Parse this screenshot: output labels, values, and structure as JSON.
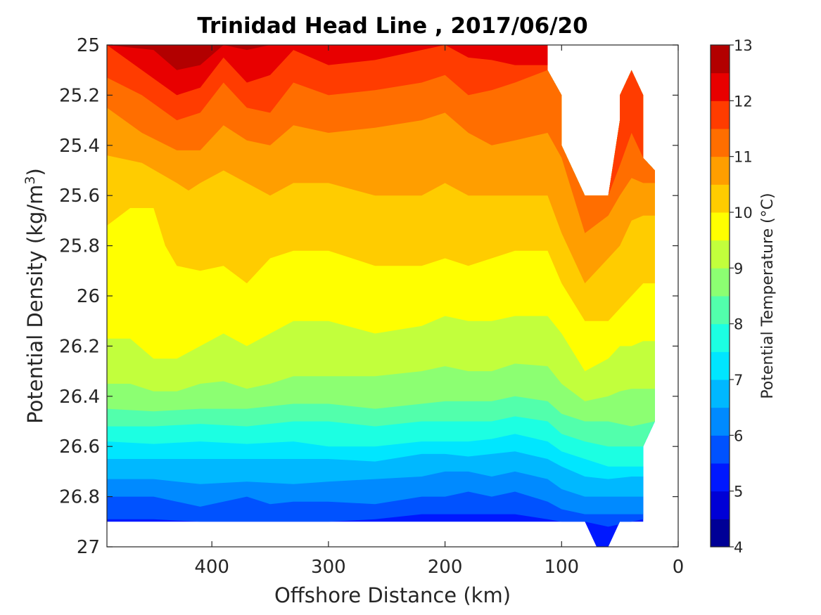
{
  "chart_data": {
    "type": "heatmap",
    "subtype": "filled-contour",
    "title": "Trinidad Head Line , 2017/06/20",
    "xlabel": "Offshore Distance (km)",
    "ylabel": "Potential Density (kg/m",
    "ylabel_superscript": "3",
    "ylabel_suffix": ")",
    "x_reversed": true,
    "y_reversed": true,
    "xlim": [
      0,
      490
    ],
    "ylim": [
      25,
      27
    ],
    "x_ticks": [
      400,
      300,
      200,
      100,
      0
    ],
    "x_tick_labels": [
      "400",
      "300",
      "200",
      "100",
      "0"
    ],
    "y_ticks": [
      25,
      25.2,
      25.4,
      25.6,
      25.8,
      26,
      26.2,
      26.4,
      26.6,
      26.8,
      27
    ],
    "y_tick_labels": [
      "25",
      "25.2",
      "25.4",
      "25.6",
      "25.8",
      "26",
      "26.2",
      "26.4",
      "26.6",
      "26.8",
      "27"
    ],
    "grid": false,
    "colorbar": {
      "label": "Potential Temperature (°C)",
      "min": 4,
      "max": 13,
      "levels": [
        4,
        4.5,
        5,
        5.5,
        6,
        6.5,
        7,
        7.5,
        8,
        8.5,
        9,
        9.5,
        10,
        10.5,
        11,
        11.5,
        12,
        12.5,
        13
      ],
      "colors": [
        "#000096",
        "#0000d6",
        "#0018ff",
        "#0052ff",
        "#008aff",
        "#00b8ff",
        "#00e6ff",
        "#1cffe2",
        "#52ffac",
        "#8cff72",
        "#c2ff3c",
        "#ffff00",
        "#ffcc00",
        "#ff9e00",
        "#ff6e00",
        "#ff3c00",
        "#e80000",
        "#b20000"
      ],
      "tick_values": [
        4,
        5,
        6,
        7,
        8,
        9,
        10,
        11,
        12,
        13
      ],
      "tick_labels": [
        "4",
        "5",
        "6",
        "7",
        "8",
        "9",
        "10",
        "11",
        "12",
        "13"
      ]
    },
    "contour_boundaries": [
      {
        "temp": 12.5,
        "x": [
          490,
          450,
          430,
          410,
          390,
          370,
          350,
          330,
          300,
          260,
          220,
          200,
          180,
          160,
          140,
          112
        ],
        "y": [
          25,
          25.02,
          25.1,
          25.08,
          25.0,
          25.02,
          25.0,
          25.0,
          25.0,
          25.0,
          25.0,
          25.0,
          25.0,
          25.0,
          25.0,
          25.0
        ]
      },
      {
        "temp": 12,
        "x": [
          490,
          460,
          430,
          410,
          390,
          370,
          350,
          330,
          300,
          260,
          220,
          200,
          180,
          160,
          140,
          112
        ],
        "y": [
          25.0,
          25.1,
          25.2,
          25.17,
          25.05,
          25.15,
          25.12,
          25.02,
          25.08,
          25.06,
          25.02,
          25.0,
          25.05,
          25.06,
          25.08,
          25.08
        ]
      },
      {
        "temp": 11.5,
        "x": [
          490,
          460,
          430,
          410,
          390,
          370,
          350,
          330,
          300,
          260,
          220,
          200,
          180,
          160,
          140,
          112,
          100,
          80,
          60,
          50,
          40,
          30,
          20
        ],
        "y": [
          25.13,
          25.2,
          25.3,
          25.27,
          25.15,
          25.25,
          25.27,
          25.15,
          25.2,
          25.18,
          25.15,
          25.12,
          25.2,
          25.18,
          25.15,
          25.1,
          25.2,
          25.6,
          25.6,
          25.48,
          25.35,
          25.45,
          25.5
        ]
      },
      {
        "temp": 11,
        "x": [
          490,
          460,
          430,
          410,
          390,
          370,
          350,
          330,
          300,
          260,
          220,
          200,
          180,
          160,
          140,
          112,
          100,
          80,
          60,
          50,
          40,
          30,
          20
        ],
        "y": [
          25.25,
          25.35,
          25.42,
          25.42,
          25.32,
          25.38,
          25.4,
          25.32,
          25.35,
          25.33,
          25.3,
          25.27,
          25.35,
          25.4,
          25.38,
          25.35,
          25.45,
          25.75,
          25.68,
          25.6,
          25.53,
          25.55,
          25.55
        ]
      },
      {
        "temp": 10.5,
        "x": [
          490,
          460,
          430,
          420,
          410,
          390,
          370,
          350,
          330,
          300,
          260,
          220,
          200,
          180,
          160,
          140,
          112,
          100,
          80,
          60,
          50,
          40,
          30,
          20
        ],
        "y": [
          25.44,
          25.47,
          25.55,
          25.58,
          25.55,
          25.5,
          25.55,
          25.6,
          25.55,
          25.55,
          25.6,
          25.6,
          25.55,
          25.6,
          25.6,
          25.6,
          25.6,
          25.75,
          25.95,
          25.85,
          25.8,
          25.7,
          25.68,
          25.68
        ]
      },
      {
        "temp": 10,
        "x": [
          490,
          470,
          450,
          440,
          430,
          410,
          390,
          370,
          350,
          330,
          300,
          260,
          220,
          200,
          180,
          160,
          140,
          112,
          100,
          80,
          60,
          50,
          40,
          30,
          20
        ],
        "y": [
          25.72,
          25.65,
          25.65,
          25.8,
          25.88,
          25.9,
          25.88,
          25.95,
          25.85,
          25.82,
          25.82,
          25.88,
          25.88,
          25.85,
          25.88,
          25.85,
          25.82,
          25.82,
          25.95,
          26.1,
          26.1,
          26.05,
          26.0,
          25.95,
          25.95
        ]
      },
      {
        "temp": 9.5,
        "x": [
          490,
          470,
          450,
          440,
          430,
          410,
          390,
          370,
          350,
          330,
          300,
          260,
          220,
          200,
          180,
          160,
          140,
          112,
          100,
          80,
          60,
          50,
          40,
          30,
          20
        ],
        "y": [
          26.17,
          26.17,
          26.25,
          26.25,
          26.25,
          26.2,
          26.15,
          26.2,
          26.15,
          26.1,
          26.1,
          26.15,
          26.12,
          26.08,
          26.1,
          26.1,
          26.08,
          26.08,
          26.15,
          26.3,
          26.25,
          26.2,
          26.2,
          26.18,
          26.18
        ]
      },
      {
        "temp": 9,
        "x": [
          490,
          470,
          450,
          430,
          410,
          390,
          370,
          350,
          330,
          300,
          260,
          220,
          200,
          180,
          160,
          140,
          112,
          100,
          80,
          60,
          50,
          40,
          30,
          20
        ],
        "y": [
          26.35,
          26.35,
          26.38,
          26.38,
          26.35,
          26.34,
          26.37,
          26.35,
          26.32,
          26.32,
          26.32,
          26.3,
          26.28,
          26.3,
          26.3,
          26.27,
          26.28,
          26.35,
          26.42,
          26.4,
          26.38,
          26.37,
          26.37,
          26.37
        ]
      },
      {
        "temp": 8.5,
        "x": [
          490,
          450,
          410,
          370,
          330,
          300,
          260,
          220,
          200,
          180,
          160,
          140,
          112,
          100,
          80,
          60,
          40,
          20
        ],
        "y": [
          26.45,
          26.46,
          26.45,
          26.45,
          26.43,
          26.43,
          26.45,
          26.43,
          26.42,
          26.42,
          26.42,
          26.4,
          26.42,
          26.47,
          26.5,
          26.5,
          26.52,
          26.5
        ]
      },
      {
        "temp": 8,
        "x": [
          490,
          450,
          410,
          370,
          330,
          300,
          260,
          220,
          200,
          180,
          160,
          140,
          112,
          100,
          80,
          60,
          40,
          20
        ],
        "y": [
          26.52,
          26.52,
          26.51,
          26.52,
          26.5,
          26.5,
          26.52,
          26.5,
          26.5,
          26.5,
          26.5,
          26.48,
          26.5,
          26.55,
          26.58,
          26.6,
          26.6,
          26.6
        ]
      },
      {
        "temp": 7.5,
        "x": [
          490,
          450,
          410,
          370,
          330,
          300,
          260,
          220,
          200,
          180,
          160,
          140,
          112,
          100,
          80,
          60,
          40,
          30
        ],
        "y": [
          26.58,
          26.59,
          26.58,
          26.59,
          26.58,
          26.6,
          26.6,
          26.58,
          26.58,
          26.58,
          26.57,
          26.55,
          26.58,
          26.62,
          26.65,
          26.68,
          26.68,
          26.68
        ]
      },
      {
        "temp": 7,
        "x": [
          490,
          450,
          410,
          370,
          330,
          300,
          260,
          220,
          200,
          180,
          160,
          140,
          112,
          100,
          80,
          60,
          40,
          30
        ],
        "y": [
          26.65,
          26.65,
          26.65,
          26.65,
          26.65,
          26.65,
          26.66,
          26.63,
          26.63,
          26.64,
          26.63,
          26.62,
          26.65,
          26.68,
          26.72,
          26.73,
          26.72,
          26.72
        ]
      },
      {
        "temp": 6.5,
        "x": [
          490,
          450,
          410,
          370,
          330,
          300,
          260,
          220,
          200,
          180,
          160,
          140,
          112,
          100,
          80,
          60,
          40,
          30
        ],
        "y": [
          26.73,
          26.73,
          26.75,
          26.74,
          26.75,
          26.74,
          26.73,
          26.72,
          26.7,
          26.7,
          26.72,
          26.7,
          26.73,
          26.77,
          26.8,
          26.8,
          26.8,
          26.8
        ]
      },
      {
        "temp": 6,
        "x": [
          490,
          450,
          430,
          410,
          390,
          370,
          350,
          330,
          300,
          260,
          220,
          200,
          180,
          160,
          140,
          112,
          100,
          80,
          60,
          40,
          30
        ],
        "y": [
          26.8,
          26.8,
          26.82,
          26.84,
          26.82,
          26.8,
          26.83,
          26.82,
          26.82,
          26.83,
          26.8,
          26.8,
          26.78,
          26.8,
          26.78,
          26.82,
          26.85,
          26.87,
          26.87,
          26.87,
          26.87
        ]
      },
      {
        "temp": 5.5,
        "x": [
          490,
          450,
          410,
          370,
          330,
          300,
          260,
          220,
          200,
          180,
          160,
          140,
          112,
          100,
          80,
          60,
          40,
          30
        ],
        "y": [
          26.89,
          26.89,
          26.9,
          26.9,
          26.9,
          26.9,
          26.89,
          26.87,
          26.87,
          26.87,
          26.87,
          26.87,
          26.89,
          26.9,
          26.9,
          26.92,
          26.9,
          26.89
        ]
      }
    ],
    "data_region": {
      "x": [
        490,
        112,
        112,
        100,
        100,
        80,
        70,
        60,
        50,
        50,
        40,
        30,
        30,
        20,
        20,
        30,
        30,
        50,
        60,
        70,
        80,
        490
      ],
      "y": [
        25.0,
        25.0,
        25.1,
        25.2,
        25.4,
        25.6,
        25.6,
        25.6,
        25.3,
        25.2,
        25.1,
        25.2,
        25.45,
        25.5,
        26.5,
        26.6,
        26.9,
        26.9,
        27.0,
        27.0,
        26.9,
        26.9
      ]
    }
  }
}
